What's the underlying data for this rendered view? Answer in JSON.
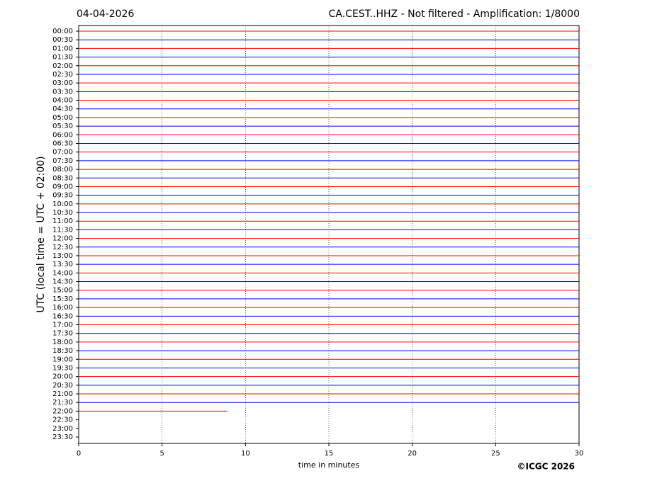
{
  "chart_data": {
    "type": "helicorder",
    "date": "04-04-2026",
    "title": "CA.CEST..HHZ - Not filtered - Amplification: 1/8000",
    "ylabel": "UTC (local time = UTC + 02:00)",
    "xlabel": "time in minutes",
    "copyright": "©ICGC 2026",
    "categories": [
      "00:00",
      "00:30",
      "01:00",
      "01:30",
      "02:00",
      "02:30",
      "03:00",
      "03:30",
      "04:00",
      "04:30",
      "05:00",
      "05:30",
      "06:00",
      "06:30",
      "07:00",
      "07:30",
      "08:00",
      "08:30",
      "09:00",
      "09:30",
      "10:00",
      "10:30",
      "11:00",
      "11:30",
      "12:00",
      "12:30",
      "13:00",
      "13:30",
      "14:00",
      "14:30",
      "15:00",
      "15:30",
      "16:00",
      "16:30",
      "17:00",
      "17:30",
      "18:00",
      "18:30",
      "19:00",
      "19:30",
      "20:00",
      "20:30",
      "21:00",
      "21:30",
      "22:00",
      "22:30",
      "23:00",
      "23:30"
    ],
    "values": [
      30,
      30,
      30,
      30,
      30,
      30,
      30,
      30,
      30,
      30,
      30,
      30,
      30,
      30,
      30,
      30,
      30,
      30,
      30,
      30,
      30,
      30,
      30,
      30,
      30,
      30,
      30,
      30,
      30,
      30,
      30,
      30,
      30,
      30,
      30,
      30,
      30,
      30,
      30,
      30,
      30,
      30,
      30,
      30,
      8.9,
      null,
      null,
      null
    ],
    "colors": [
      "#ff0000",
      "#0000ff"
    ],
    "xlim": [
      0,
      30
    ],
    "xticks": [
      0,
      5,
      10,
      15,
      20,
      25,
      30
    ],
    "grid": true
  }
}
